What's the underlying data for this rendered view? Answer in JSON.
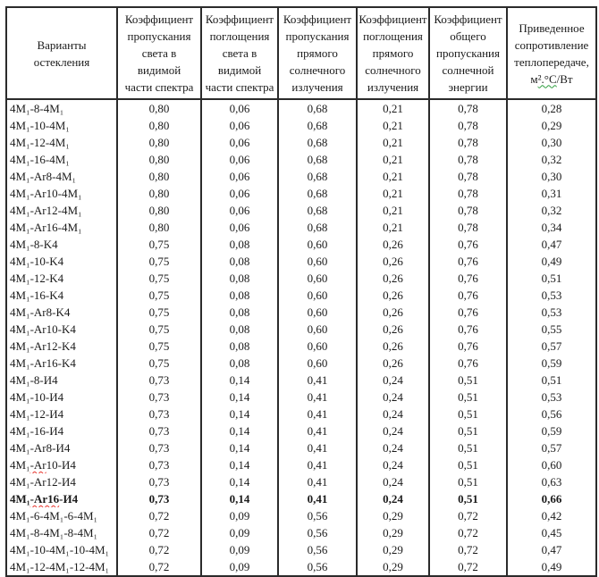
{
  "table": {
    "headers": {
      "variants": "Варианты\nостекления",
      "light_transmission": "Коэффициент\nпропускания\nсвета в\nвидимой\nчасти спектра",
      "light_absorption": "Коэффициент\nпоглощения\nсвета в\nвидимой\nчасти спектра",
      "solar_transmission": "Коэффициент\nпропускания\nпрямого\nсолнечного\nизлучения",
      "solar_absorption": "Коэффициент\nпоглощения\nпрямого\nсолнечного\nизлучения",
      "total_solar": "Коэффициент\nобщего\nпропускания\nсолнечной\nэнергии",
      "resistance_main": "Приведенное\nсопротивление\nтеплопередаче,",
      "resistance_unit": "м².°С/Вт",
      "resistance_unit_squiggle": {
        "start": 1,
        "len": 4,
        "color": "#2e9e3e"
      }
    },
    "rows": [
      {
        "variant": "4M₁-8-4M₁",
        "values": [
          "0,80",
          "0,06",
          "0,68",
          "0,21",
          "0,78",
          "0,28"
        ]
      },
      {
        "variant": "4M₁-10-4M₁",
        "values": [
          "0,80",
          "0,06",
          "0,68",
          "0,21",
          "0,78",
          "0,29"
        ]
      },
      {
        "variant": "4M₁-12-4M₁",
        "values": [
          "0,80",
          "0,06",
          "0,68",
          "0,21",
          "0,78",
          "0,30"
        ]
      },
      {
        "variant": "4M₁-16-4M₁",
        "values": [
          "0,80",
          "0,06",
          "0,68",
          "0,21",
          "0,78",
          "0,32"
        ]
      },
      {
        "variant": "4M₁-Ar8-4M₁",
        "values": [
          "0,80",
          "0,06",
          "0,68",
          "0,21",
          "0,78",
          "0,30"
        ]
      },
      {
        "variant": "4M₁-Ar10-4M₁",
        "values": [
          "0,80",
          "0,06",
          "0,68",
          "0,21",
          "0,78",
          "0,31"
        ]
      },
      {
        "variant": "4M₁-Ar12-4M₁",
        "values": [
          "0,80",
          "0,06",
          "0,68",
          "0,21",
          "0,78",
          "0,32"
        ]
      },
      {
        "variant": "4M₁-Ar16-4M₁",
        "values": [
          "0,80",
          "0,06",
          "0,68",
          "0,21",
          "0,78",
          "0,34"
        ]
      },
      {
        "variant": "4M₁-8-K4",
        "values": [
          "0,75",
          "0,08",
          "0,60",
          "0,26",
          "0,76",
          "0,47"
        ]
      },
      {
        "variant": "4M₁-10-K4",
        "values": [
          "0,75",
          "0,08",
          "0,60",
          "0,26",
          "0,76",
          "0,49"
        ]
      },
      {
        "variant": "4M₁-12-K4",
        "values": [
          "0,75",
          "0,08",
          "0,60",
          "0,26",
          "0,76",
          "0,51"
        ]
      },
      {
        "variant": "4M₁-16-K4",
        "values": [
          "0,75",
          "0,08",
          "0,60",
          "0,26",
          "0,76",
          "0,53"
        ]
      },
      {
        "variant": "4M₁-Ar8-K4",
        "values": [
          "0,75",
          "0,08",
          "0,60",
          "0,26",
          "0,76",
          "0,53"
        ]
      },
      {
        "variant": "4M₁-Ar10-K4",
        "values": [
          "0,75",
          "0,08",
          "0,60",
          "0,26",
          "0,76",
          "0,55"
        ]
      },
      {
        "variant": "4M₁-Ar12-K4",
        "values": [
          "0,75",
          "0,08",
          "0,60",
          "0,26",
          "0,76",
          "0,57"
        ]
      },
      {
        "variant": "4M₁-Ar16-K4",
        "values": [
          "0,75",
          "0,08",
          "0,60",
          "0,26",
          "0,76",
          "0,59"
        ]
      },
      {
        "variant": "4M₁-8-И4",
        "values": [
          "0,73",
          "0,14",
          "0,41",
          "0,24",
          "0,51",
          "0,51"
        ]
      },
      {
        "variant": "4M₁-10-И4",
        "values": [
          "0,73",
          "0,14",
          "0,41",
          "0,24",
          "0,51",
          "0,53"
        ]
      },
      {
        "variant": "4M₁-12-И4",
        "values": [
          "0,73",
          "0,14",
          "0,41",
          "0,24",
          "0,51",
          "0,56"
        ]
      },
      {
        "variant": "4M₁-16-И4",
        "values": [
          "0,73",
          "0,14",
          "0,41",
          "0,24",
          "0,51",
          "0,59"
        ]
      },
      {
        "variant": "4M₁-Ar8-И4",
        "values": [
          "0,73",
          "0,14",
          "0,41",
          "0,24",
          "0,51",
          "0,57"
        ]
      },
      {
        "variant": "4M₁-Ar10-И4",
        "values": [
          "0,73",
          "0,14",
          "0,41",
          "0,24",
          "0,51",
          "0,60"
        ],
        "squiggle": {
          "start": 3,
          "len": 3,
          "color": "#e8342c"
        }
      },
      {
        "variant": "4M₁-Ar12-И4",
        "values": [
          "0,73",
          "0,14",
          "0,41",
          "0,24",
          "0,51",
          "0,63"
        ]
      },
      {
        "variant": "4M₁-Ar16-И4",
        "values": [
          "0,73",
          "0,14",
          "0,41",
          "0,24",
          "0,51",
          "0,66"
        ],
        "bold": true,
        "squiggle": {
          "start": 3,
          "len": 5,
          "color": "#e8342c"
        }
      },
      {
        "variant": "4M₁-6-4M₁-6-4M₁",
        "values": [
          "0,72",
          "0,09",
          "0,56",
          "0,29",
          "0,72",
          "0,42"
        ]
      },
      {
        "variant": "4M₁-8-4M₁-8-4M₁",
        "values": [
          "0,72",
          "0,09",
          "0,56",
          "0,29",
          "0,72",
          "0,45"
        ]
      },
      {
        "variant": "4M₁-10-4M₁-10-4M₁",
        "values": [
          "0,72",
          "0,09",
          "0,56",
          "0,29",
          "0,72",
          "0,47"
        ]
      },
      {
        "variant": "4M₁-12-4M₁-12-4M₁",
        "values": [
          "0,72",
          "0,09",
          "0,56",
          "0,29",
          "0,72",
          "0,49"
        ]
      }
    ]
  }
}
